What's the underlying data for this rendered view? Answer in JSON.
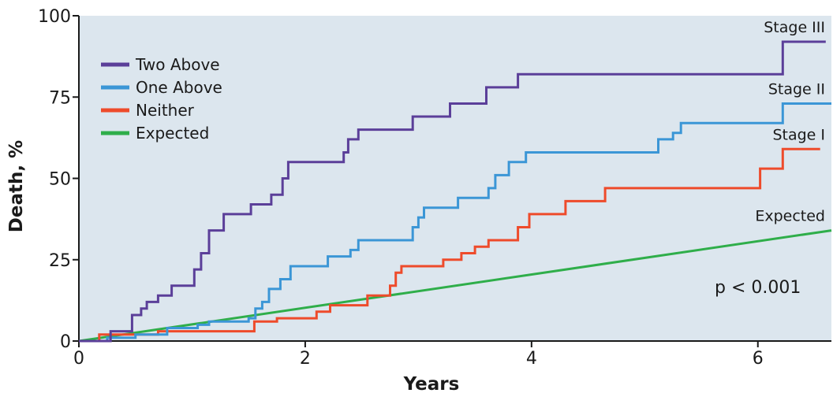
{
  "chart_data": {
    "type": "line",
    "xlabel": "Years",
    "ylabel": "Death, %",
    "xlim": [
      0,
      6.65
    ],
    "ylim": [
      0,
      100
    ],
    "x_ticks": [
      0,
      2,
      4,
      6
    ],
    "y_ticks": [
      0,
      25,
      50,
      75,
      100
    ],
    "grid": false,
    "legend_position": "top-left",
    "annotation": "p < 0.001",
    "background_color": "#dce6ee",
    "series": [
      {
        "name": "Two Above",
        "end_label": "Stage III",
        "color": "#5b3f99",
        "step": true,
        "points": [
          [
            0,
            0
          ],
          [
            0.28,
            0
          ],
          [
            0.28,
            3
          ],
          [
            0.47,
            3
          ],
          [
            0.47,
            8
          ],
          [
            0.55,
            8
          ],
          [
            0.55,
            10
          ],
          [
            0.6,
            10
          ],
          [
            0.6,
            12
          ],
          [
            0.7,
            12
          ],
          [
            0.7,
            14
          ],
          [
            0.82,
            14
          ],
          [
            0.82,
            17
          ],
          [
            1.02,
            17
          ],
          [
            1.02,
            22
          ],
          [
            1.08,
            22
          ],
          [
            1.08,
            27
          ],
          [
            1.15,
            27
          ],
          [
            1.15,
            34
          ],
          [
            1.28,
            34
          ],
          [
            1.28,
            39
          ],
          [
            1.52,
            39
          ],
          [
            1.52,
            42
          ],
          [
            1.7,
            42
          ],
          [
            1.7,
            45
          ],
          [
            1.8,
            45
          ],
          [
            1.8,
            50
          ],
          [
            1.85,
            50
          ],
          [
            1.85,
            55
          ],
          [
            2.34,
            55
          ],
          [
            2.34,
            58
          ],
          [
            2.38,
            58
          ],
          [
            2.38,
            62
          ],
          [
            2.47,
            62
          ],
          [
            2.47,
            65
          ],
          [
            2.95,
            65
          ],
          [
            2.95,
            69
          ],
          [
            3.28,
            69
          ],
          [
            3.28,
            73
          ],
          [
            3.6,
            73
          ],
          [
            3.6,
            78
          ],
          [
            3.88,
            78
          ],
          [
            3.88,
            82
          ],
          [
            6.22,
            82
          ],
          [
            6.22,
            92
          ],
          [
            6.6,
            92
          ]
        ]
      },
      {
        "name": "One Above",
        "end_label": "Stage II",
        "color": "#3b96d6",
        "step": true,
        "points": [
          [
            0,
            0
          ],
          [
            0.25,
            0
          ],
          [
            0.25,
            1
          ],
          [
            0.5,
            1
          ],
          [
            0.5,
            2
          ],
          [
            0.78,
            2
          ],
          [
            0.78,
            4
          ],
          [
            1.05,
            4
          ],
          [
            1.05,
            5
          ],
          [
            1.15,
            5
          ],
          [
            1.15,
            6
          ],
          [
            1.5,
            6
          ],
          [
            1.5,
            7
          ],
          [
            1.56,
            7
          ],
          [
            1.56,
            10
          ],
          [
            1.62,
            10
          ],
          [
            1.62,
            12
          ],
          [
            1.68,
            12
          ],
          [
            1.68,
            16
          ],
          [
            1.78,
            16
          ],
          [
            1.78,
            19
          ],
          [
            1.87,
            19
          ],
          [
            1.87,
            23
          ],
          [
            2.2,
            23
          ],
          [
            2.2,
            26
          ],
          [
            2.4,
            26
          ],
          [
            2.4,
            28
          ],
          [
            2.47,
            28
          ],
          [
            2.47,
            31
          ],
          [
            2.95,
            31
          ],
          [
            2.95,
            35
          ],
          [
            3.0,
            35
          ],
          [
            3.0,
            38
          ],
          [
            3.05,
            38
          ],
          [
            3.05,
            41
          ],
          [
            3.35,
            41
          ],
          [
            3.35,
            44
          ],
          [
            3.62,
            44
          ],
          [
            3.62,
            47
          ],
          [
            3.68,
            47
          ],
          [
            3.68,
            51
          ],
          [
            3.8,
            51
          ],
          [
            3.8,
            55
          ],
          [
            3.95,
            55
          ],
          [
            3.95,
            58
          ],
          [
            5.12,
            58
          ],
          [
            5.12,
            62
          ],
          [
            5.25,
            62
          ],
          [
            5.25,
            64
          ],
          [
            5.32,
            64
          ],
          [
            5.32,
            67
          ],
          [
            6.22,
            67
          ],
          [
            6.22,
            73
          ],
          [
            6.65,
            73
          ]
        ]
      },
      {
        "name": "Neither",
        "end_label": "Stage I",
        "color": "#ee4b2b",
        "step": true,
        "points": [
          [
            0,
            0
          ],
          [
            0.18,
            0
          ],
          [
            0.18,
            2
          ],
          [
            0.7,
            2
          ],
          [
            0.7,
            3
          ],
          [
            1.55,
            3
          ],
          [
            1.55,
            6
          ],
          [
            1.75,
            6
          ],
          [
            1.75,
            7
          ],
          [
            2.1,
            7
          ],
          [
            2.1,
            9
          ],
          [
            2.22,
            9
          ],
          [
            2.22,
            11
          ],
          [
            2.55,
            11
          ],
          [
            2.55,
            14
          ],
          [
            2.75,
            14
          ],
          [
            2.75,
            17
          ],
          [
            2.8,
            17
          ],
          [
            2.8,
            21
          ],
          [
            2.85,
            21
          ],
          [
            2.85,
            23
          ],
          [
            3.22,
            23
          ],
          [
            3.22,
            25
          ],
          [
            3.38,
            25
          ],
          [
            3.38,
            27
          ],
          [
            3.5,
            27
          ],
          [
            3.5,
            29
          ],
          [
            3.62,
            29
          ],
          [
            3.62,
            31
          ],
          [
            3.88,
            31
          ],
          [
            3.88,
            35
          ],
          [
            3.98,
            35
          ],
          [
            3.98,
            39
          ],
          [
            4.3,
            39
          ],
          [
            4.3,
            43
          ],
          [
            4.65,
            43
          ],
          [
            4.65,
            47
          ],
          [
            6.02,
            47
          ],
          [
            6.02,
            53
          ],
          [
            6.22,
            53
          ],
          [
            6.22,
            59
          ],
          [
            6.55,
            59
          ]
        ]
      },
      {
        "name": "Expected",
        "end_label": "Expected",
        "color": "#2fae4a",
        "step": false,
        "points": [
          [
            0,
            0
          ],
          [
            6.65,
            34
          ]
        ]
      }
    ]
  }
}
